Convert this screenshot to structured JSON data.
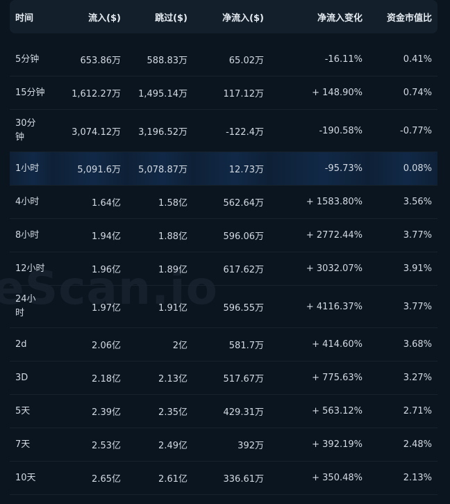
{
  "watermark": "eScan.io",
  "headers": {
    "time": "时间",
    "inflow": "流入($)",
    "skip": "跳过($)",
    "net_inflow": "净流入($)",
    "net_change": "净流入变化",
    "mcap_ratio": "资金市值比"
  },
  "rows": [
    {
      "time": "5分钟",
      "inflow": "653.86万",
      "skip": "588.83万",
      "net": "65.02万",
      "change": "-16.11%",
      "ratio": "0.41%"
    },
    {
      "time": "15分钟",
      "inflow": "1,612.27万",
      "skip": "1,495.14万",
      "net": "117.12万",
      "change": "+ 148.90%",
      "ratio": "0.74%"
    },
    {
      "time": "30分钟",
      "inflow": "3,074.12万",
      "skip": "3,196.52万",
      "net": "-122.4万",
      "change": "-190.58%",
      "ratio": "-0.77%"
    },
    {
      "time": "1小时",
      "inflow": "5,091.6万",
      "skip": "5,078.87万",
      "net": "12.73万",
      "change": "-95.73%",
      "ratio": "0.08%"
    },
    {
      "time": "4小时",
      "inflow": "1.64亿",
      "skip": "1.58亿",
      "net": "562.64万",
      "change": "+ 1583.80%",
      "ratio": "3.56%"
    },
    {
      "time": "8小时",
      "inflow": "1.94亿",
      "skip": "1.88亿",
      "net": "596.06万",
      "change": "+ 2772.44%",
      "ratio": "3.77%"
    },
    {
      "time": "12小时",
      "inflow": "1.96亿",
      "skip": "1.89亿",
      "net": "617.62万",
      "change": "+ 3032.07%",
      "ratio": "3.91%"
    },
    {
      "time": "24小时",
      "inflow": "1.97亿",
      "skip": "1.91亿",
      "net": "596.55万",
      "change": "+ 4116.37%",
      "ratio": "3.77%"
    },
    {
      "time": "2d",
      "inflow": "2.06亿",
      "skip": "2亿",
      "net": "581.7万",
      "change": "+ 414.60%",
      "ratio": "3.68%"
    },
    {
      "time": "3D",
      "inflow": "2.18亿",
      "skip": "2.13亿",
      "net": "517.67万",
      "change": "+ 775.63%",
      "ratio": "3.27%"
    },
    {
      "time": "5天",
      "inflow": "2.39亿",
      "skip": "2.35亿",
      "net": "429.31万",
      "change": "+ 563.12%",
      "ratio": "2.71%"
    },
    {
      "time": "7天",
      "inflow": "2.53亿",
      "skip": "2.49亿",
      "net": "392万",
      "change": "+ 392.19%",
      "ratio": "2.48%"
    },
    {
      "time": "10天",
      "inflow": "2.65亿",
      "skip": "2.61亿",
      "net": "336.61万",
      "change": "+ 350.48%",
      "ratio": "2.13%"
    }
  ],
  "colors": {
    "positive": "#2ebd85",
    "negative": "#f6465d",
    "highlight_row": "#112947"
  }
}
